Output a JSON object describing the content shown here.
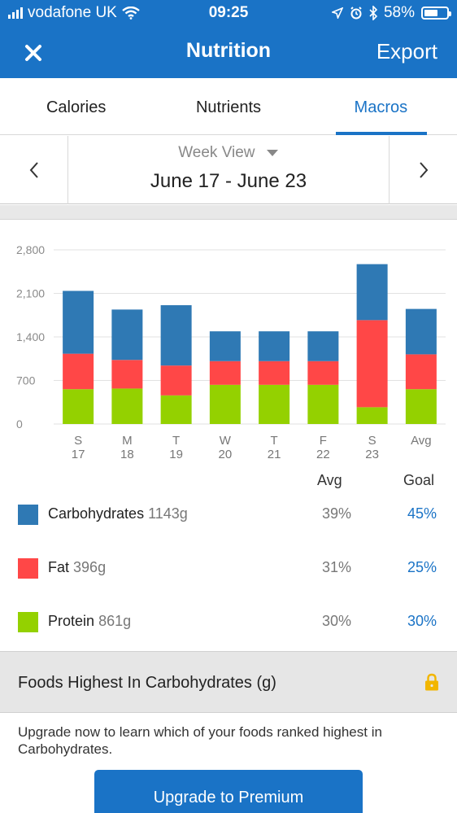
{
  "status": {
    "carrier": "vodafone UK",
    "time": "09:25",
    "battery": "58%"
  },
  "nav": {
    "title": "Nutrition",
    "export_label": "Export"
  },
  "tabs": [
    {
      "label": "Calories",
      "active": false
    },
    {
      "label": "Nutrients",
      "active": false
    },
    {
      "label": "Macros",
      "active": true
    }
  ],
  "week": {
    "view_label": "Week View",
    "range": "June 17 - June 23"
  },
  "chart_data": {
    "type": "bar",
    "stacked": true,
    "categories": [
      "S",
      "M",
      "T",
      "W",
      "T",
      "F",
      "S",
      "Avg"
    ],
    "dates": [
      "17",
      "18",
      "19",
      "20",
      "21",
      "22",
      "23",
      ""
    ],
    "series": [
      {
        "name": "Protein",
        "color": "#94d100",
        "values": [
          560,
          570,
          460,
          630,
          630,
          630,
          270,
          560
        ]
      },
      {
        "name": "Fat",
        "color": "#ff4747",
        "values": [
          570,
          460,
          480,
          380,
          380,
          380,
          1400,
          560
        ]
      },
      {
        "name": "Carbohydrates",
        "color": "#2f79b4",
        "values": [
          1010,
          810,
          970,
          480,
          480,
          480,
          900,
          730
        ]
      }
    ],
    "yticks": [
      "2,800",
      "2,100",
      "1,400",
      "700",
      "0"
    ],
    "ylim": [
      0,
      2800
    ],
    "grid": true
  },
  "legend": {
    "avg_header": "Avg",
    "goal_header": "Goal",
    "rows": [
      {
        "name": "Carbohydrates",
        "grams": "1143g",
        "avg": "39%",
        "goal": "45%",
        "color": "#2f79b4"
      },
      {
        "name": "Fat",
        "grams": "396g",
        "avg": "31%",
        "goal": "25%",
        "color": "#ff4747"
      },
      {
        "name": "Protein",
        "grams": "861g",
        "avg": "30%",
        "goal": "30%",
        "color": "#94d100"
      }
    ]
  },
  "foods": {
    "title": "Foods Highest In Carbohydrates (g)",
    "upgrade_text": "Upgrade now to learn which of your foods ranked highest in Carbohydrates.",
    "button_label": "Upgrade to Premium"
  }
}
